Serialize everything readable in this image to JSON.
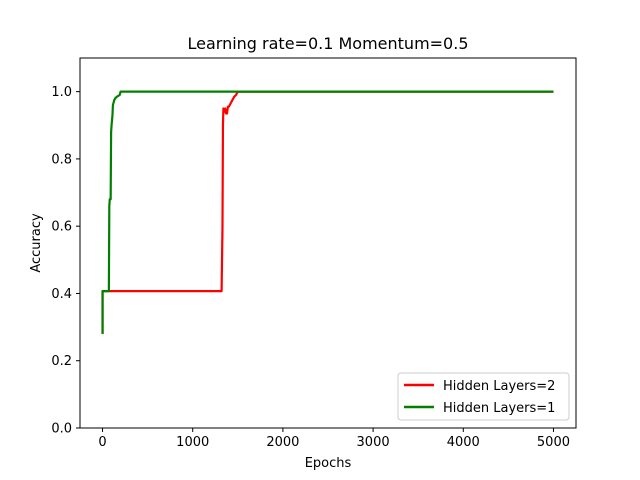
{
  "chart_data": {
    "type": "line",
    "title": "Learning rate=0.1 Momentum=0.5",
    "xlabel": "Epochs",
    "ylabel": "Accuracy",
    "xlim": [
      -250,
      5250
    ],
    "ylim": [
      0.0,
      1.1
    ],
    "xticks": [
      0,
      1000,
      2000,
      3000,
      4000,
      5000
    ],
    "xtick_labels": [
      "0",
      "1000",
      "2000",
      "3000",
      "4000",
      "5000"
    ],
    "yticks": [
      0.0,
      0.2,
      0.4,
      0.6,
      0.8,
      1.0
    ],
    "ytick_labels": [
      "0.0",
      "0.2",
      "0.4",
      "0.6",
      "0.8",
      "1.0"
    ],
    "grid": false,
    "legend_position": "lower right",
    "series": [
      {
        "name": "Hidden Layers=2",
        "color": "#ff0000",
        "x": [
          0,
          0,
          1320,
          1330,
          1335,
          1340,
          1350,
          1360,
          1370,
          1380,
          1390,
          1400,
          1410,
          1420,
          1440,
          1460,
          1480,
          1500,
          5000
        ],
        "y": [
          0.28,
          0.407,
          0.407,
          0.6,
          0.9,
          0.95,
          0.94,
          0.95,
          0.935,
          0.935,
          0.955,
          0.955,
          0.96,
          0.965,
          0.975,
          0.985,
          0.99,
          1.0,
          1.0
        ]
      },
      {
        "name": "Hidden Layers=1",
        "color": "#008000",
        "x": [
          0,
          0,
          70,
          75,
          80,
          90,
          95,
          100,
          110,
          115,
          125,
          130,
          140,
          160,
          190,
          200,
          5000
        ],
        "y": [
          0.28,
          0.407,
          0.407,
          0.66,
          0.68,
          0.68,
          0.88,
          0.9,
          0.93,
          0.96,
          0.97,
          0.975,
          0.98,
          0.985,
          0.99,
          1.0,
          1.0
        ]
      }
    ]
  }
}
